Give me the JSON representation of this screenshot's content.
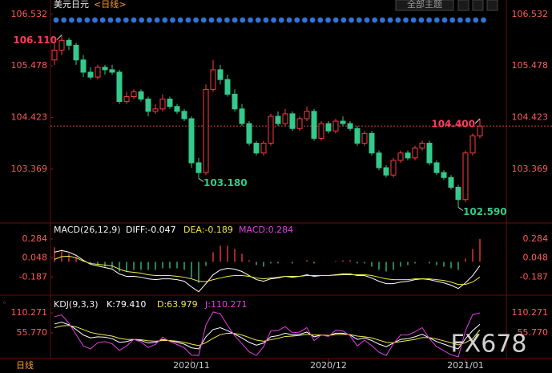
{
  "header": {
    "title": "美元日元",
    "period": "<日线>",
    "theme_button": "全部主题"
  },
  "chart_data": [
    {
      "type": "candlestick",
      "up_color": "#ff3b3b",
      "down_color": "#35c98b",
      "ylim": [
        102.32,
        106.66
      ],
      "yticks": [
        106.532,
        105.478,
        104.423,
        103.369
      ],
      "last_price": 104.25,
      "xticks": [
        {
          "value": 19,
          "label": "2020/11"
        },
        {
          "value": 38,
          "label": "2020/12"
        },
        {
          "value": 57,
          "label": "2021/01"
        }
      ],
      "annotations": [
        {
          "index": 1,
          "value": 106.11,
          "label": "106.110",
          "color": "#ff3b5c",
          "side": "left"
        },
        {
          "index": 20,
          "value": 103.18,
          "label": "103.180",
          "color": "#35c98b",
          "side": "right"
        },
        {
          "index": 59,
          "value": 104.4,
          "label": "104.400",
          "color": "#ff3b5c",
          "side": "left"
        },
        {
          "index": 56,
          "value": 102.59,
          "label": "102.590",
          "color": "#35c98b",
          "side": "right"
        }
      ],
      "ohlc": [
        [
          105.6,
          105.95,
          105.5,
          105.8
        ],
        [
          105.8,
          106.11,
          105.7,
          106.0
        ],
        [
          106.0,
          106.05,
          105.8,
          105.9
        ],
        [
          105.9,
          105.95,
          105.5,
          105.6
        ],
        [
          105.6,
          105.7,
          105.25,
          105.35
        ],
        [
          105.35,
          105.45,
          105.2,
          105.25
        ],
        [
          105.25,
          105.5,
          105.2,
          105.45
        ],
        [
          105.45,
          105.5,
          105.3,
          105.4
        ],
        [
          105.4,
          105.5,
          105.3,
          105.35
        ],
        [
          105.35,
          105.4,
          104.7,
          104.75
        ],
        [
          104.75,
          104.95,
          104.7,
          104.85
        ],
        [
          104.85,
          105.0,
          104.8,
          104.95
        ],
        [
          104.95,
          105.0,
          104.75,
          104.8
        ],
        [
          104.8,
          104.85,
          104.45,
          104.55
        ],
        [
          104.55,
          104.7,
          104.5,
          104.6
        ],
        [
          104.6,
          104.9,
          104.55,
          104.8
        ],
        [
          104.8,
          104.85,
          104.6,
          104.65
        ],
        [
          104.65,
          104.7,
          104.5,
          104.55
        ],
        [
          104.55,
          104.6,
          104.35,
          104.4
        ],
        [
          104.4,
          104.45,
          103.4,
          103.5
        ],
        [
          103.5,
          103.6,
          103.18,
          103.3
        ],
        [
          103.3,
          105.1,
          103.25,
          105.0
        ],
        [
          105.0,
          105.6,
          104.95,
          105.4
        ],
        [
          105.4,
          105.5,
          105.1,
          105.2
        ],
        [
          105.2,
          105.3,
          104.85,
          104.9
        ],
        [
          104.9,
          105.0,
          104.55,
          104.6
        ],
        [
          104.6,
          104.7,
          104.25,
          104.3
        ],
        [
          104.3,
          104.35,
          103.85,
          103.9
        ],
        [
          103.9,
          103.95,
          103.65,
          103.7
        ],
        [
          103.7,
          103.95,
          103.65,
          103.9
        ],
        [
          103.9,
          104.5,
          103.85,
          104.45
        ],
        [
          104.45,
          104.55,
          104.25,
          104.3
        ],
        [
          104.3,
          104.6,
          104.25,
          104.5
        ],
        [
          104.5,
          104.55,
          104.15,
          104.2
        ],
        [
          104.2,
          104.45,
          104.15,
          104.4
        ],
        [
          104.4,
          104.65,
          104.35,
          104.55
        ],
        [
          104.55,
          104.6,
          103.95,
          104.0
        ],
        [
          104.0,
          104.35,
          103.95,
          104.3
        ],
        [
          104.3,
          104.35,
          104.1,
          104.15
        ],
        [
          104.15,
          104.4,
          104.1,
          104.35
        ],
        [
          104.35,
          104.45,
          104.25,
          104.3
        ],
        [
          104.3,
          104.35,
          104.15,
          104.2
        ],
        [
          104.2,
          104.25,
          103.85,
          103.9
        ],
        [
          103.9,
          104.15,
          103.85,
          104.1
        ],
        [
          104.1,
          104.15,
          103.65,
          103.7
        ],
        [
          103.7,
          103.75,
          103.35,
          103.4
        ],
        [
          103.4,
          103.45,
          103.2,
          103.25
        ],
        [
          103.25,
          103.6,
          103.2,
          103.55
        ],
        [
          103.55,
          103.75,
          103.5,
          103.7
        ],
        [
          103.7,
          103.75,
          103.55,
          103.6
        ],
        [
          103.6,
          103.85,
          103.55,
          103.8
        ],
        [
          103.8,
          103.95,
          103.75,
          103.9
        ],
        [
          103.9,
          103.95,
          103.45,
          103.5
        ],
        [
          103.5,
          103.55,
          103.25,
          103.3
        ],
        [
          103.3,
          103.35,
          103.15,
          103.2
        ],
        [
          103.2,
          103.25,
          102.95,
          103.0
        ],
        [
          103.0,
          103.05,
          102.59,
          102.75
        ],
        [
          102.75,
          103.75,
          102.7,
          103.7
        ],
        [
          103.7,
          104.1,
          103.65,
          104.05
        ],
        [
          104.05,
          104.4,
          104.0,
          104.25
        ]
      ]
    },
    {
      "type": "macd",
      "title": "MACD(26,12,9)",
      "ylim": [
        -0.383,
        0.451
      ],
      "yticks": [
        0.284,
        0.048,
        -0.187
      ],
      "bars": {
        "label": "MACD:0.284",
        "up_color": "#ff3b3b",
        "down_color": "#35c98b",
        "values": [
          0.18,
          0.15,
          0.1,
          0.06,
          0.02,
          -0.02,
          -0.04,
          -0.06,
          -0.08,
          -0.12,
          -0.12,
          -0.1,
          -0.1,
          -0.1,
          -0.1,
          -0.08,
          -0.08,
          -0.08,
          -0.1,
          -0.2,
          -0.26,
          -0.05,
          0.12,
          0.2,
          0.2,
          0.16,
          0.1,
          0.02,
          -0.04,
          -0.06,
          -0.02,
          -0.02,
          0.0,
          -0.02,
          0.0,
          0.02,
          -0.02,
          0.0,
          0.0,
          0.01,
          0.02,
          0.02,
          -0.02,
          -0.02,
          -0.06,
          -0.1,
          -0.12,
          -0.1,
          -0.06,
          -0.04,
          -0.02,
          0.0,
          -0.02,
          -0.04,
          -0.06,
          -0.08,
          -0.1,
          0.04,
          0.16,
          0.284
        ]
      },
      "series": [
        {
          "label": "DIFF:-0.047",
          "color": "#ffffff",
          "values": [
            0.12,
            0.14,
            0.12,
            0.08,
            0.02,
            -0.03,
            -0.05,
            -0.07,
            -0.09,
            -0.15,
            -0.18,
            -0.18,
            -0.19,
            -0.21,
            -0.22,
            -0.21,
            -0.21,
            -0.22,
            -0.24,
            -0.31,
            -0.37,
            -0.27,
            -0.16,
            -0.1,
            -0.08,
            -0.09,
            -0.12,
            -0.17,
            -0.22,
            -0.24,
            -0.21,
            -0.2,
            -0.18,
            -0.19,
            -0.18,
            -0.16,
            -0.18,
            -0.17,
            -0.17,
            -0.16,
            -0.15,
            -0.15,
            -0.17,
            -0.17,
            -0.2,
            -0.24,
            -0.27,
            -0.27,
            -0.25,
            -0.24,
            -0.22,
            -0.21,
            -0.22,
            -0.24,
            -0.26,
            -0.29,
            -0.33,
            -0.26,
            -0.17,
            -0.047
          ]
        },
        {
          "label": "DEA:-0.189",
          "color": "#f2e84b",
          "values": [
            0.03,
            0.065,
            0.07,
            0.05,
            0.01,
            -0.02,
            -0.03,
            -0.04,
            -0.05,
            -0.09,
            -0.12,
            -0.13,
            -0.14,
            -0.16,
            -0.17,
            -0.17,
            -0.17,
            -0.18,
            -0.19,
            -0.21,
            -0.24,
            -0.245,
            -0.22,
            -0.2,
            -0.18,
            -0.17,
            -0.17,
            -0.18,
            -0.2,
            -0.21,
            -0.2,
            -0.19,
            -0.18,
            -0.18,
            -0.18,
            -0.17,
            -0.17,
            -0.17,
            -0.17,
            -0.165,
            -0.16,
            -0.16,
            -0.16,
            -0.16,
            -0.17,
            -0.19,
            -0.21,
            -0.22,
            -0.22,
            -0.22,
            -0.21,
            -0.21,
            -0.21,
            -0.22,
            -0.23,
            -0.25,
            -0.28,
            -0.28,
            -0.25,
            -0.189
          ]
        }
      ]
    },
    {
      "type": "kdj",
      "title": "KDJ(9,3,3)",
      "ylim": [
        -10,
        150
      ],
      "yticks": [
        110.271,
        {
          "value": 55.77,
          "label": "55.770"
        }
      ],
      "series": [
        {
          "label": "K:79.410",
          "color": "#ffffff",
          "values": [
            80,
            85,
            78,
            65,
            50,
            42,
            45,
            44,
            40,
            30,
            32,
            38,
            35,
            28,
            30,
            38,
            34,
            30,
            25,
            15,
            12,
            45,
            65,
            70,
            62,
            52,
            42,
            30,
            22,
            28,
            45,
            48,
            55,
            50,
            52,
            58,
            45,
            50,
            48,
            55,
            55,
            50,
            38,
            42,
            35,
            25,
            18,
            28,
            38,
            40,
            45,
            52,
            42,
            32,
            25,
            18,
            12,
            40,
            62,
            79.41
          ]
        },
        {
          "label": "D:63.979",
          "color": "#f2e84b",
          "values": [
            70,
            75,
            76,
            72,
            65,
            57,
            53,
            50,
            47,
            41,
            38,
            38,
            37,
            34,
            33,
            35,
            35,
            33,
            30,
            25,
            21,
            29,
            41,
            51,
            55,
            54,
            50,
            43,
            36,
            33,
            37,
            41,
            46,
            47,
            49,
            52,
            50,
            50,
            49,
            51,
            52,
            51,
            47,
            45,
            42,
            36,
            30,
            29,
            32,
            35,
            38,
            43,
            43,
            39,
            34,
            29,
            23,
            29,
            40,
            63.979
          ]
        },
        {
          "label": "J:110.271",
          "color": "#e63ce6",
          "values": [
            100,
            105,
            82,
            51,
            20,
            12,
            29,
            32,
            26,
            8,
            20,
            38,
            31,
            16,
            24,
            44,
            32,
            24,
            15,
            -5,
            -6,
            77,
            113,
            108,
            76,
            48,
            26,
            4,
            -6,
            18,
            61,
            62,
            73,
            56,
            58,
            70,
            35,
            50,
            46,
            63,
            61,
            48,
            20,
            36,
            21,
            3,
            -6,
            26,
            50,
            50,
            59,
            70,
            40,
            18,
            7,
            -4,
            -10,
            62,
            106,
            110.271
          ]
        }
      ]
    }
  ],
  "footer": {
    "period": "日线",
    "watermark": "FX678"
  }
}
